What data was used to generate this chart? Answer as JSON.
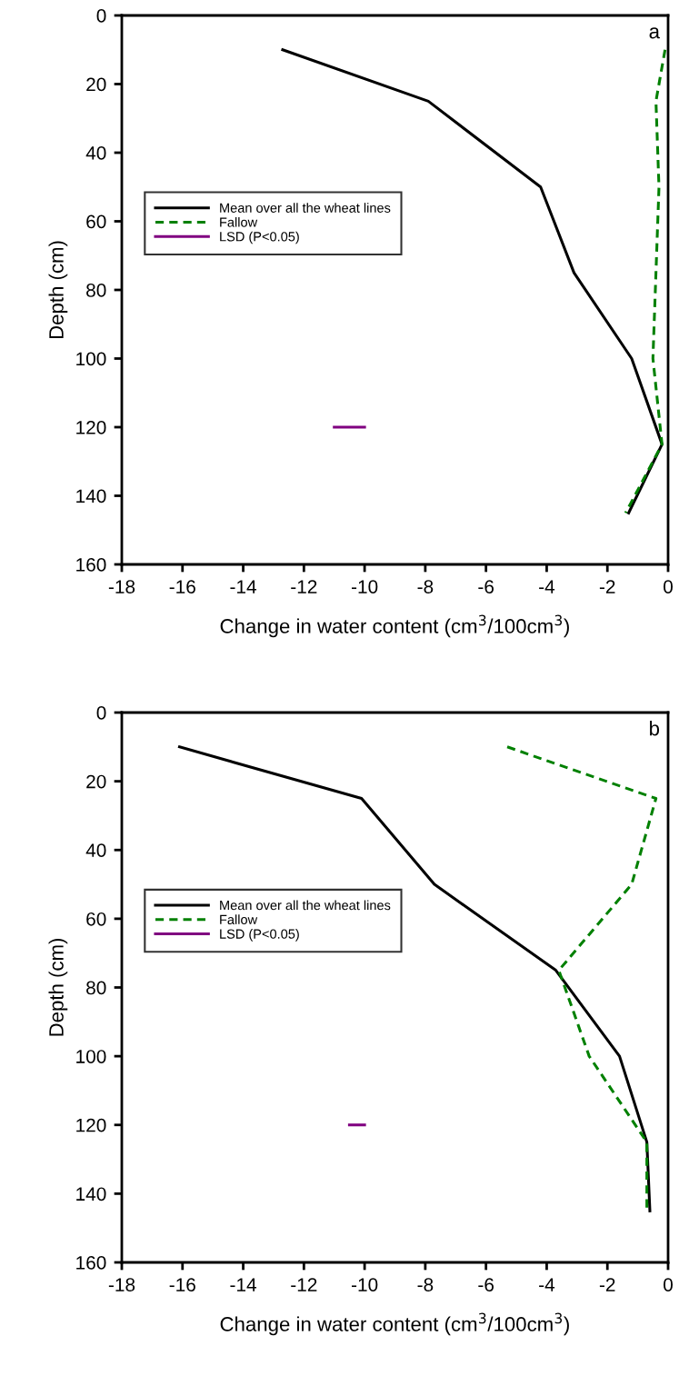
{
  "chart_data": [
    {
      "type": "line",
      "xlabel": "Change in water content (cm$^{3}$/100cm$^{3}$)",
      "ylabel": "Depth (cm)",
      "annotations": [
        "a"
      ],
      "xlim": [
        -18,
        0
      ],
      "xticks": [
        -18,
        -16,
        -14,
        -12,
        -10,
        -8,
        -6,
        -4,
        -2,
        0
      ],
      "ylim": [
        160,
        0
      ],
      "yticks": [
        0,
        20,
        40,
        60,
        80,
        100,
        120,
        140,
        160
      ],
      "grid": false,
      "legend": "left",
      "series": [
        {
          "name": "Mean over all the wheat lines",
          "color": "#000000",
          "line_style": "solid",
          "x": [
            -12.7,
            -7.9,
            -4.2,
            -3.1,
            -1.2,
            -0.2,
            -1.3
          ],
          "values": [
            10,
            25,
            50,
            75,
            100,
            125,
            145
          ]
        },
        {
          "name": "Fallow",
          "color": "#008000",
          "line_style": "dashed",
          "x": [
            -0.1,
            -0.4,
            -0.3,
            -0.4,
            -0.5,
            -0.2,
            -1.4
          ],
          "values": [
            10,
            25,
            50,
            75,
            100,
            125,
            145
          ]
        },
        {
          "name": "LSD (P<0.05)",
          "color": "#800080",
          "line_style": "solid",
          "x": [
            -11.0,
            -10.0
          ],
          "values": [
            120,
            120
          ]
        }
      ]
    },
    {
      "type": "line",
      "xlabel": "Change in water content (cm$^{3}$/100cm$^{3}$)",
      "ylabel": "Depth (cm)",
      "annotations": [
        "b"
      ],
      "xlim": [
        -18,
        0
      ],
      "xticks": [
        -18,
        -16,
        -14,
        -12,
        -10,
        -8,
        -6,
        -4,
        -2,
        0
      ],
      "ylim": [
        160,
        0
      ],
      "yticks": [
        0,
        20,
        40,
        60,
        80,
        100,
        120,
        140,
        160
      ],
      "grid": false,
      "legend": "left",
      "series": [
        {
          "name": "Mean over all the wheat lines",
          "color": "#000000",
          "line_style": "solid",
          "x": [
            -16.1,
            -10.1,
            -7.7,
            -3.7,
            -1.6,
            -0.7,
            -0.6
          ],
          "values": [
            10,
            25,
            50,
            75,
            100,
            125,
            145
          ]
        },
        {
          "name": "Fallow",
          "color": "#008000",
          "line_style": "dashed",
          "x": [
            -5.3,
            -0.4,
            -1.2,
            -3.6,
            -2.6,
            -0.7,
            -0.7
          ],
          "values": [
            10,
            25,
            50,
            75,
            100,
            125,
            145
          ]
        },
        {
          "name": "LSD (P<0.05)",
          "color": "#800080",
          "line_style": "solid",
          "x": [
            -10.5,
            -10.0
          ],
          "values": [
            120,
            120
          ]
        }
      ]
    }
  ]
}
